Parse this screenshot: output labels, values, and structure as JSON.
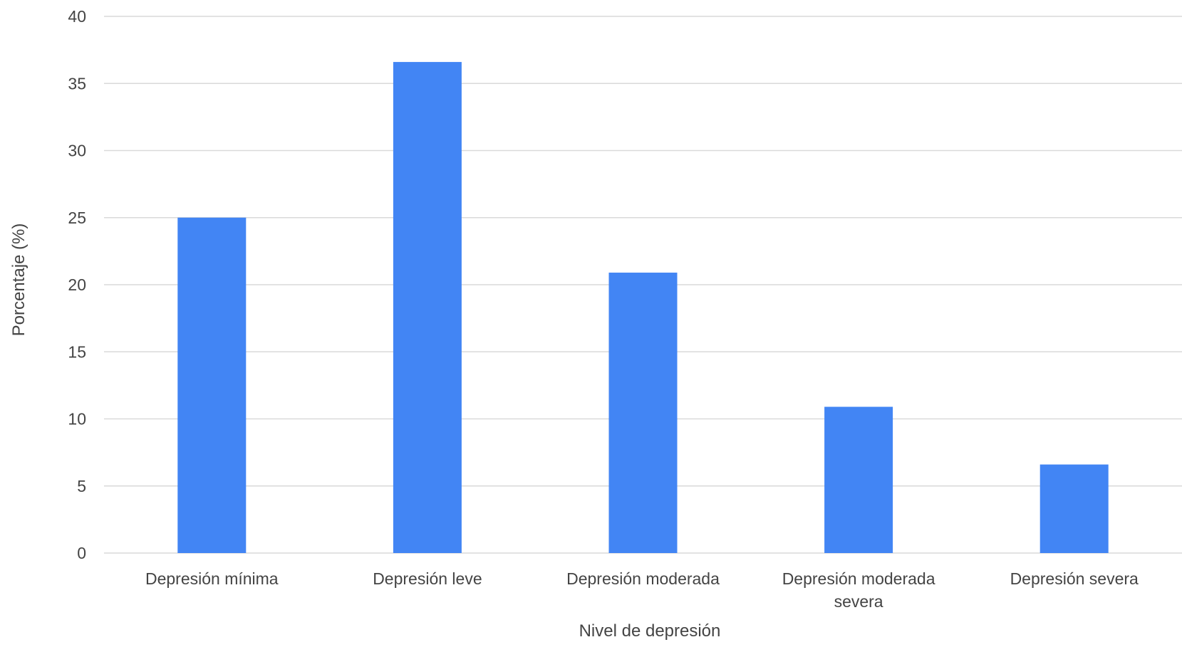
{
  "chart_data": {
    "type": "bar",
    "title": "",
    "xlabel": "Nivel de depresión",
    "ylabel": "Porcentaje (%)",
    "ylim": [
      0,
      40
    ],
    "yticks": [
      "0",
      "5",
      "10",
      "15",
      "20",
      "25",
      "30",
      "35",
      "40"
    ],
    "grid": true,
    "categories": [
      [
        "Depresión mínima"
      ],
      [
        "Depresión leve"
      ],
      [
        "Depresión moderada"
      ],
      [
        "Depresión moderada",
        "severa"
      ],
      [
        "Depresión severa"
      ]
    ],
    "values": [
      25.0,
      36.6,
      20.9,
      10.9,
      6.6
    ],
    "colors": {
      "bar": "#4285F4",
      "grid": "#D9D9D9",
      "text": "#444444"
    }
  }
}
